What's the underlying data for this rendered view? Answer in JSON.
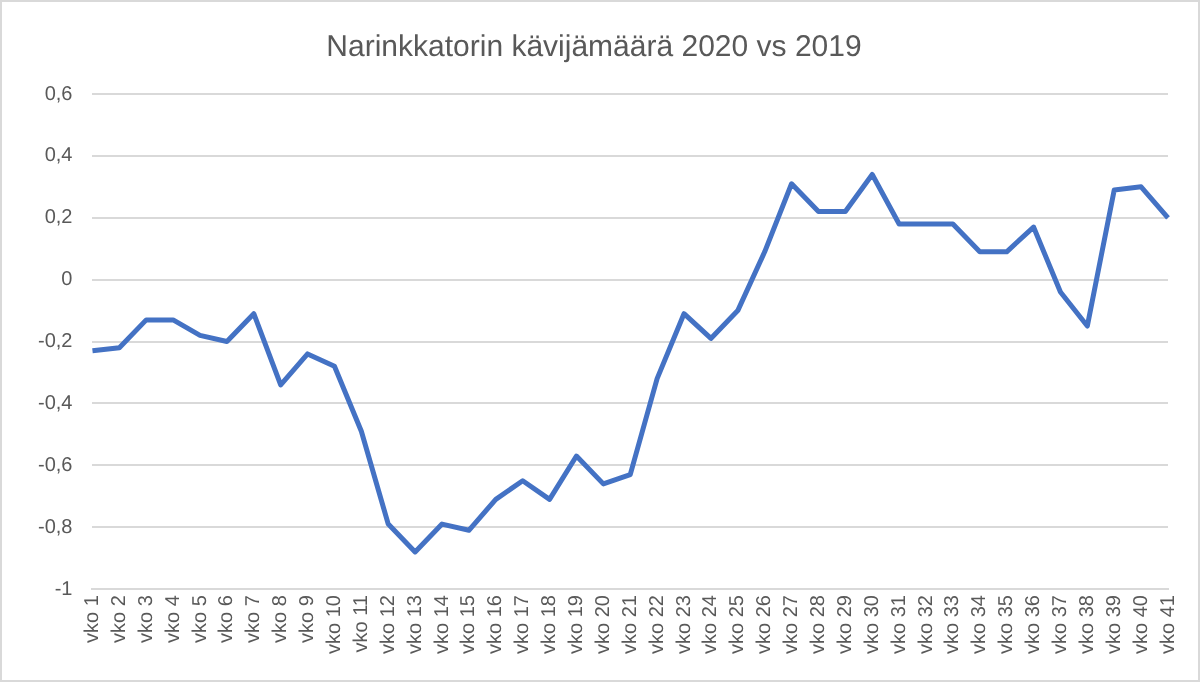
{
  "chart_data": {
    "type": "line",
    "title": "Narinkkatorin kävijämäärä 2020 vs 2019",
    "categories": [
      "vko 1",
      "vko 2",
      "vko 3",
      "vko 4",
      "vko 5",
      "vko 6",
      "vko 7",
      "vko 8",
      "vko 9",
      "vko 10",
      "vko 11",
      "vko 12",
      "vko 13",
      "vko 14",
      "vko 15",
      "vko 16",
      "vko 17",
      "vko 18",
      "vko 19",
      "vko 20",
      "vko 21",
      "vko 22",
      "vko 23",
      "vko 24",
      "vko 25",
      "vko 26",
      "vko 27",
      "vko 28",
      "vko 29",
      "vko 30",
      "vko 31",
      "vko 32",
      "vko 33",
      "vko 34",
      "vko 35",
      "vko 36",
      "vko 37",
      "vko 38",
      "vko 39",
      "vko 40",
      "vko 41"
    ],
    "series": [
      {
        "color": "#4472c4",
        "values": [
          -0.23,
          -0.22,
          -0.13,
          -0.13,
          -0.18,
          -0.2,
          -0.11,
          -0.34,
          -0.24,
          -0.28,
          -0.49,
          -0.79,
          -0.88,
          -0.79,
          -0.81,
          -0.71,
          -0.65,
          -0.71,
          -0.57,
          -0.66,
          -0.63,
          -0.32,
          -0.11,
          -0.19,
          -0.1,
          0.09,
          0.31,
          0.22,
          0.22,
          0.34,
          0.18,
          0.18,
          0.18,
          0.09,
          0.09,
          0.17,
          -0.04,
          -0.15,
          0.29,
          0.3,
          0.2
        ]
      }
    ],
    "ylim": [
      -1,
      0.6
    ],
    "yticks": [
      {
        "value": -1,
        "label": "-1"
      },
      {
        "value": -0.8,
        "label": "-0,8"
      },
      {
        "value": -0.6,
        "label": "-0,6"
      },
      {
        "value": -0.4,
        "label": "-0,4"
      },
      {
        "value": -0.2,
        "label": "-0,2"
      },
      {
        "value": 0,
        "label": "0"
      },
      {
        "value": 0.2,
        "label": "0,2"
      },
      {
        "value": 0.4,
        "label": "0,4"
      },
      {
        "value": 0.6,
        "label": "0,6"
      }
    ],
    "grid": "y",
    "legend": false,
    "marker": "none",
    "line_style": "solid"
  }
}
